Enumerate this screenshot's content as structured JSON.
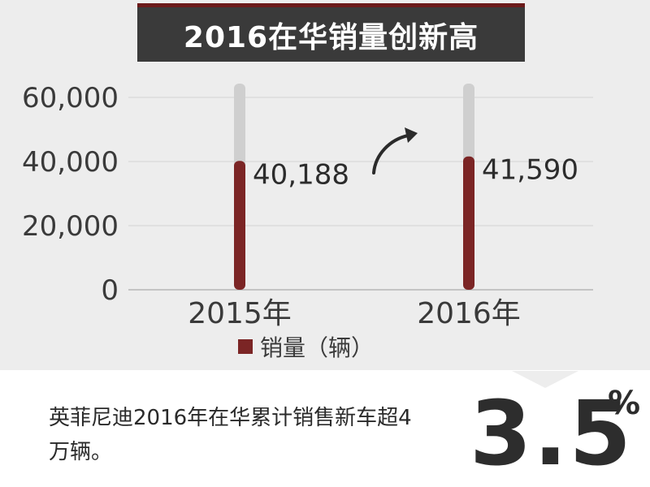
{
  "header": {
    "title": "2016在华销量创新高"
  },
  "chart_data": {
    "type": "bar",
    "title": "2016在华销量创新高",
    "categories": [
      "2015年",
      "2016年"
    ],
    "series": [
      {
        "name": "销量（辆）",
        "values": [
          40188,
          41590
        ]
      }
    ],
    "data_labels": [
      "40,188",
      "41,590"
    ],
    "y_ticks": [
      "0",
      "20,000",
      "40,000",
      "60,000"
    ],
    "y_tick_values": [
      0,
      20000,
      40000,
      60000
    ],
    "ylim": [
      0,
      63000
    ],
    "xlabel": "",
    "ylabel": "",
    "grid": true,
    "legend_position": "bottom",
    "colors": {
      "bar": "#7b2525",
      "bar_track": "#cfcfcf",
      "grid": "#d4d4d4",
      "axis": "#c4c4c4"
    }
  },
  "caption": "英菲尼迪2016年在华累计销售新车超4万辆。",
  "growth": {
    "value": "3.5",
    "unit": "%"
  },
  "colors": {
    "title_bg": "#3a3a3a",
    "accent": "#6b1a1a",
    "panel_bg": "#ffffff",
    "page_bg": "#ededed"
  },
  "icons": {
    "trend": "curved-up-arrow-icon"
  }
}
